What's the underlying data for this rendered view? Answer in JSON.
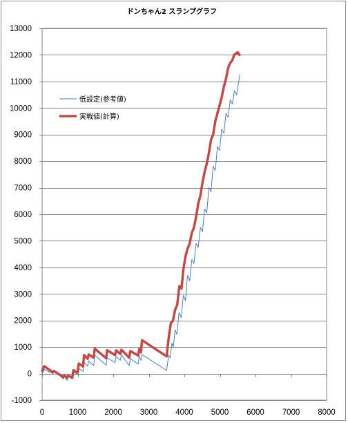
{
  "chart_data": {
    "type": "line",
    "title": "ドンちゃん2 スランプグラフ",
    "xlabel": "",
    "ylabel": "",
    "xlim": [
      0,
      8000
    ],
    "ylim": [
      -1000,
      13000
    ],
    "x_ticks": [
      0,
      1000,
      2000,
      3000,
      4000,
      5000,
      6000,
      7000,
      8000
    ],
    "y_ticks": [
      -1000,
      0,
      1000,
      2000,
      3000,
      4000,
      5000,
      6000,
      7000,
      8000,
      9000,
      10000,
      11000,
      12000,
      13000
    ],
    "grid": "horizontal",
    "legend_position": "upper-left",
    "series": [
      {
        "name": "低設定(参考値)",
        "color": "#4a7ebb",
        "style": "thin",
        "points": [
          [
            0,
            0
          ],
          [
            40,
            100
          ],
          [
            60,
            160
          ],
          [
            300,
            0
          ],
          [
            330,
            110
          ],
          [
            600,
            -200
          ],
          [
            630,
            -80
          ],
          [
            700,
            -250
          ],
          [
            730,
            -110
          ],
          [
            850,
            -200
          ],
          [
            880,
            60
          ],
          [
            1000,
            -30
          ],
          [
            1030,
            200
          ],
          [
            1150,
            80
          ],
          [
            1180,
            420
          ],
          [
            1280,
            280
          ],
          [
            1310,
            480
          ],
          [
            1450,
            300
          ],
          [
            1480,
            700
          ],
          [
            1800,
            320
          ],
          [
            1830,
            600
          ],
          [
            2050,
            420
          ],
          [
            2080,
            650
          ],
          [
            2200,
            500
          ],
          [
            2230,
            700
          ],
          [
            2450,
            300
          ],
          [
            2480,
            560
          ],
          [
            2700,
            360
          ],
          [
            2730,
            660
          ],
          [
            2780,
            500
          ],
          [
            2810,
            720
          ],
          [
            3500,
            120
          ],
          [
            3560,
            700
          ],
          [
            3600,
            600
          ],
          [
            3650,
            1150
          ],
          [
            3690,
            1000
          ],
          [
            3740,
            1650
          ],
          [
            3790,
            1480
          ],
          [
            3850,
            2300
          ],
          [
            3910,
            2100
          ],
          [
            3970,
            2950
          ],
          [
            4030,
            2750
          ],
          [
            4090,
            3700
          ],
          [
            4150,
            3500
          ],
          [
            4210,
            4300
          ],
          [
            4270,
            4150
          ],
          [
            4330,
            4900
          ],
          [
            4390,
            4750
          ],
          [
            4450,
            5500
          ],
          [
            4510,
            5350
          ],
          [
            4570,
            6200
          ],
          [
            4630,
            6050
          ],
          [
            4690,
            7000
          ],
          [
            4750,
            6850
          ],
          [
            4810,
            7800
          ],
          [
            4870,
            7650
          ],
          [
            4930,
            8550
          ],
          [
            4990,
            8400
          ],
          [
            5050,
            9200
          ],
          [
            5110,
            9050
          ],
          [
            5170,
            9800
          ],
          [
            5230,
            9650
          ],
          [
            5290,
            10300
          ],
          [
            5350,
            10150
          ],
          [
            5410,
            10650
          ],
          [
            5470,
            10500
          ],
          [
            5540,
            11100
          ],
          [
            5560,
            11250
          ]
        ]
      },
      {
        "name": "実戦値(計算)",
        "color": "#be4b48",
        "style": "thick",
        "points": [
          [
            0,
            100
          ],
          [
            60,
            280
          ],
          [
            300,
            50
          ],
          [
            330,
            100
          ],
          [
            600,
            -130
          ],
          [
            630,
            -60
          ],
          [
            700,
            -170
          ],
          [
            730,
            -80
          ],
          [
            850,
            -150
          ],
          [
            880,
            130
          ],
          [
            1000,
            40
          ],
          [
            1030,
            380
          ],
          [
            1150,
            270
          ],
          [
            1180,
            700
          ],
          [
            1280,
            560
          ],
          [
            1310,
            720
          ],
          [
            1450,
            600
          ],
          [
            1480,
            940
          ],
          [
            1800,
            580
          ],
          [
            1830,
            880
          ],
          [
            2050,
            700
          ],
          [
            2080,
            880
          ],
          [
            2200,
            740
          ],
          [
            2230,
            900
          ],
          [
            2450,
            600
          ],
          [
            2480,
            850
          ],
          [
            2700,
            680
          ],
          [
            2730,
            920
          ],
          [
            2780,
            800
          ],
          [
            2810,
            1260
          ],
          [
            3500,
            650
          ],
          [
            3560,
            1350
          ],
          [
            3620,
            1900
          ],
          [
            3680,
            2000
          ],
          [
            3740,
            2400
          ],
          [
            3800,
            2600
          ],
          [
            3860,
            3300
          ],
          [
            3920,
            3200
          ],
          [
            3970,
            3900
          ],
          [
            4030,
            4400
          ],
          [
            4090,
            4700
          ],
          [
            4150,
            4900
          ],
          [
            4210,
            5300
          ],
          [
            4270,
            5500
          ],
          [
            4330,
            5900
          ],
          [
            4390,
            6400
          ],
          [
            4450,
            6700
          ],
          [
            4510,
            7200
          ],
          [
            4570,
            7600
          ],
          [
            4630,
            7900
          ],
          [
            4690,
            8300
          ],
          [
            4750,
            8800
          ],
          [
            4810,
            9000
          ],
          [
            4870,
            9500
          ],
          [
            4930,
            9800
          ],
          [
            4990,
            10100
          ],
          [
            5050,
            10400
          ],
          [
            5110,
            10800
          ],
          [
            5170,
            11100
          ],
          [
            5230,
            11500
          ],
          [
            5290,
            11700
          ],
          [
            5350,
            11800
          ],
          [
            5400,
            12000
          ],
          [
            5500,
            12100
          ],
          [
            5550,
            12000
          ]
        ]
      }
    ]
  }
}
